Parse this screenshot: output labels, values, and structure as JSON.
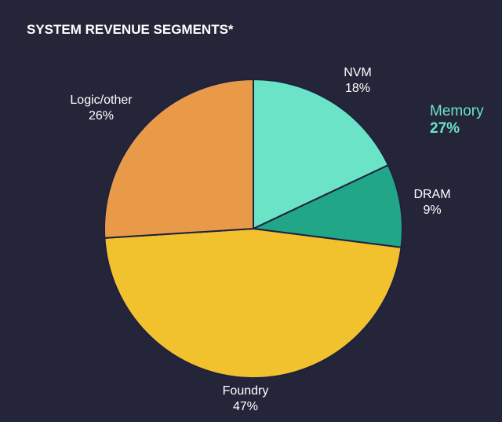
{
  "chart_data": {
    "type": "pie",
    "title": "SYSTEM REVENUE SEGMENTS*",
    "start_angle_deg": 0,
    "direction": "clockwise",
    "slices": [
      {
        "key": "nvm",
        "label": "NVM",
        "value": 18,
        "value_label": "18%",
        "color": "#6be3c7"
      },
      {
        "key": "dram",
        "label": "DRAM",
        "value": 9,
        "value_label": "9%",
        "color": "#22a688"
      },
      {
        "key": "foundry",
        "label": "Foundry",
        "value": 47,
        "value_label": "47%",
        "color": "#f2c12e"
      },
      {
        "key": "logic-other",
        "label": "Logic/other",
        "value": 26,
        "value_label": "26%",
        "color": "#e89a48"
      }
    ],
    "group_annotation": {
      "label": "Memory",
      "value_label": "27%",
      "members": [
        "NVM",
        "DRAM"
      ],
      "color": "#6be3c7"
    },
    "background_color": "#25253a",
    "slice_border_color": "#1e2040"
  }
}
